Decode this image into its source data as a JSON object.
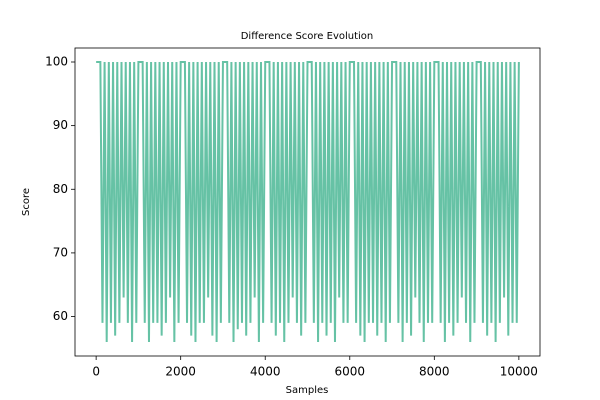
{
  "chart_data": {
    "type": "line",
    "title": "Difference Score Evolution",
    "x_label": "Samples",
    "y_label": "Score",
    "x": [
      0,
      50,
      100,
      150,
      200,
      250,
      300,
      350,
      400,
      450,
      500,
      550,
      600,
      650,
      700,
      750,
      800,
      850,
      900,
      950,
      1000,
      1050,
      1100,
      1150,
      1200,
      1250,
      1300,
      1350,
      1400,
      1450,
      1500,
      1550,
      1600,
      1650,
      1700,
      1750,
      1800,
      1850,
      1900,
      1950,
      2000,
      2050,
      2100,
      2150,
      2200,
      2250,
      2300,
      2350,
      2400,
      2450,
      2500,
      2550,
      2600,
      2650,
      2700,
      2750,
      2800,
      2850,
      2900,
      2950,
      3000,
      3050,
      3100,
      3150,
      3200,
      3250,
      3300,
      3350,
      3400,
      3450,
      3500,
      3550,
      3600,
      3650,
      3700,
      3750,
      3800,
      3850,
      3900,
      3950,
      4000,
      4050,
      4100,
      4150,
      4200,
      4250,
      4300,
      4350,
      4400,
      4450,
      4500,
      4550,
      4600,
      4650,
      4700,
      4750,
      4800,
      4850,
      4900,
      4950,
      5000,
      5050,
      5100,
      5150,
      5200,
      5250,
      5300,
      5350,
      5400,
      5450,
      5500,
      5550,
      5600,
      5650,
      5700,
      5750,
      5800,
      5850,
      5900,
      5950,
      6000,
      6050,
      6100,
      6150,
      6200,
      6250,
      6300,
      6350,
      6400,
      6450,
      6500,
      6550,
      6600,
      6650,
      6700,
      6750,
      6800,
      6850,
      6900,
      6950,
      7000,
      7050,
      7100,
      7150,
      7200,
      7250,
      7300,
      7350,
      7400,
      7450,
      7500,
      7550,
      7600,
      7650,
      7700,
      7750,
      7800,
      7850,
      7900,
      7950,
      8000,
      8050,
      8100,
      8150,
      8200,
      8250,
      8300,
      8350,
      8400,
      8450,
      8500,
      8550,
      8600,
      8650,
      8700,
      8750,
      8800,
      8850,
      8900,
      8950,
      9000,
      9050,
      9100,
      9150,
      9200,
      9250,
      9300,
      9350,
      9400,
      9450,
      9500,
      9550,
      9600,
      9650,
      9700,
      9750,
      9800,
      9850,
      9900,
      9950,
      10000
    ],
    "series": [
      {
        "name": "Score",
        "color": "#66c2a5",
        "values": [
          100,
          100,
          100,
          59,
          100,
          56,
          100,
          59,
          100,
          57,
          100,
          59,
          100,
          63,
          100,
          59,
          100,
          56,
          100,
          59,
          100,
          100,
          100,
          59,
          100,
          56,
          100,
          59,
          100,
          59,
          100,
          57,
          100,
          59,
          100,
          63,
          100,
          56,
          100,
          59,
          100,
          100,
          100,
          59,
          100,
          57,
          100,
          56,
          100,
          59,
          100,
          59,
          100,
          63,
          100,
          57,
          100,
          56,
          100,
          59,
          100,
          100,
          100,
          59,
          100,
          56,
          100,
          58,
          100,
          59,
          100,
          57,
          100,
          59,
          100,
          63,
          100,
          56,
          100,
          59,
          100,
          100,
          100,
          59,
          100,
          57,
          100,
          59,
          100,
          56,
          100,
          59,
          100,
          63,
          100,
          59,
          100,
          57,
          100,
          59,
          100,
          100,
          100,
          59,
          100,
          56,
          100,
          59,
          100,
          57,
          100,
          59,
          100,
          56,
          100,
          63,
          100,
          59,
          100,
          59,
          100,
          100,
          100,
          59,
          100,
          57,
          100,
          56,
          100,
          59,
          100,
          59,
          100,
          57,
          100,
          59,
          100,
          56,
          100,
          59,
          100,
          100,
          100,
          59,
          100,
          56,
          100,
          59,
          100,
          57,
          100,
          63,
          100,
          59,
          100,
          56,
          100,
          59,
          100,
          59,
          100,
          100,
          100,
          59,
          100,
          56,
          100,
          59,
          100,
          57,
          100,
          59,
          100,
          63,
          100,
          59,
          100,
          56,
          100,
          59,
          100,
          100,
          100,
          59,
          100,
          57,
          100,
          59,
          100,
          56,
          100,
          59,
          100,
          63,
          100,
          57,
          100,
          59,
          100,
          59,
          100
        ]
      }
    ],
    "xlim": [
      -500,
      10500
    ],
    "xticks": [
      0,
      2000,
      4000,
      6000,
      8000,
      10000
    ],
    "ylim": [
      53.8,
      102.2
    ],
    "yticks": [
      60,
      70,
      80,
      90,
      100
    ],
    "grid": false
  }
}
